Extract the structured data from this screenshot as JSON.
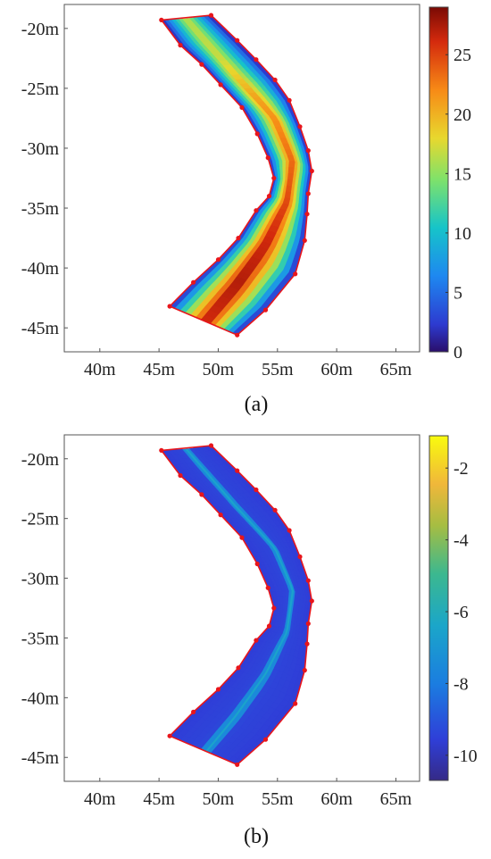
{
  "chart_data": [
    {
      "type": "heatmap",
      "caption": "(a)",
      "x_ticks": [
        "40m",
        "45m",
        "50m",
        "55m",
        "60m",
        "65m"
      ],
      "x_tick_values": [
        40,
        45,
        50,
        55,
        60,
        65
      ],
      "y_ticks": [
        "-20m",
        "-25m",
        "-30m",
        "-35m",
        "-40m",
        "-45m"
      ],
      "y_tick_values": [
        -20,
        -25,
        -30,
        -35,
        -40,
        -45
      ],
      "xlim": [
        37,
        67
      ],
      "ylim": [
        -47,
        -18
      ],
      "colormap": "jet",
      "colorbar_ticks": [
        "0",
        "5",
        "10",
        "15",
        "20",
        "25"
      ],
      "colorbar_tick_values": [
        0,
        5,
        10,
        15,
        20,
        25
      ],
      "colorbar_range": [
        0,
        29
      ],
      "centerline": [
        [
          47.3,
          -19.2
        ],
        [
          51.5,
          -24.0
        ],
        [
          54.8,
          -27.5
        ],
        [
          56.3,
          -31.0
        ],
        [
          55.8,
          -34.5
        ],
        [
          54.0,
          -38.0
        ],
        [
          51.5,
          -41.5
        ],
        [
          49.0,
          -44.5
        ]
      ],
      "field_profile": {
        "centerline_value": [
          17,
          18,
          22,
          24,
          26,
          28,
          29,
          28
        ],
        "edge_value": [
          0.5,
          0.5,
          0.5,
          0.5,
          0.5,
          0.5,
          0.5,
          0.5
        ]
      },
      "boundary_left": [
        [
          45.2,
          -19.3
        ],
        [
          46.8,
          -21.4
        ],
        [
          48.6,
          -23.0
        ],
        [
          50.2,
          -24.7
        ],
        [
          52.0,
          -26.6
        ],
        [
          53.3,
          -28.8
        ],
        [
          54.2,
          -30.8
        ],
        [
          54.7,
          -32.5
        ],
        [
          54.3,
          -34.0
        ],
        [
          53.2,
          -35.2
        ],
        [
          51.7,
          -37.5
        ],
        [
          50.0,
          -39.3
        ],
        [
          47.9,
          -41.2
        ],
        [
          45.9,
          -43.2
        ]
      ],
      "boundary_right": [
        [
          49.4,
          -18.9
        ],
        [
          51.6,
          -21.0
        ],
        [
          53.2,
          -22.6
        ],
        [
          54.8,
          -24.3
        ],
        [
          56.0,
          -26.0
        ],
        [
          56.9,
          -28.2
        ],
        [
          57.6,
          -30.2
        ],
        [
          57.9,
          -31.9
        ],
        [
          57.6,
          -33.8
        ],
        [
          57.5,
          -35.5
        ],
        [
          57.3,
          -37.7
        ],
        [
          56.5,
          -40.5
        ],
        [
          54.0,
          -43.5
        ],
        [
          51.6,
          -45.6
        ]
      ]
    },
    {
      "type": "heatmap",
      "caption": "(b)",
      "x_ticks": [
        "40m",
        "45m",
        "50m",
        "55m",
        "60m",
        "65m"
      ],
      "x_tick_values": [
        40,
        45,
        50,
        55,
        60,
        65
      ],
      "y_ticks": [
        "-20m",
        "-25m",
        "-30m",
        "-35m",
        "-40m",
        "-45m"
      ],
      "y_tick_values": [
        -20,
        -25,
        -30,
        -35,
        -40,
        -45
      ],
      "xlim": [
        37,
        67
      ],
      "ylim": [
        -47,
        -18
      ],
      "colormap": "parula",
      "colorbar_ticks": [
        "-2",
        "-4",
        "-6",
        "-8",
        "-10"
      ],
      "colorbar_tick_values": [
        -2,
        -4,
        -6,
        -8,
        -10
      ],
      "colorbar_range": [
        -10.7,
        -1.1
      ],
      "background_value": -9.6,
      "centerline_value": -6.5,
      "centerline": [
        [
          47.3,
          -19.2
        ],
        [
          51.5,
          -24.0
        ],
        [
          54.8,
          -27.5
        ],
        [
          56.3,
          -31.0
        ],
        [
          55.8,
          -34.5
        ],
        [
          54.0,
          -38.0
        ],
        [
          51.5,
          -41.5
        ],
        [
          49.0,
          -44.5
        ]
      ],
      "boundary_left": [
        [
          45.2,
          -19.3
        ],
        [
          46.8,
          -21.4
        ],
        [
          48.6,
          -23.0
        ],
        [
          50.2,
          -24.7
        ],
        [
          52.0,
          -26.6
        ],
        [
          53.3,
          -28.8
        ],
        [
          54.2,
          -30.8
        ],
        [
          54.7,
          -32.5
        ],
        [
          54.3,
          -34.0
        ],
        [
          53.2,
          -35.2
        ],
        [
          51.7,
          -37.5
        ],
        [
          50.0,
          -39.3
        ],
        [
          47.9,
          -41.2
        ],
        [
          45.9,
          -43.2
        ]
      ],
      "boundary_right": [
        [
          49.4,
          -18.9
        ],
        [
          51.6,
          -21.0
        ],
        [
          53.2,
          -22.6
        ],
        [
          54.8,
          -24.3
        ],
        [
          56.0,
          -26.0
        ],
        [
          56.9,
          -28.2
        ],
        [
          57.6,
          -30.2
        ],
        [
          57.9,
          -31.9
        ],
        [
          57.6,
          -33.8
        ],
        [
          57.5,
          -35.5
        ],
        [
          57.3,
          -37.7
        ],
        [
          56.5,
          -40.5
        ],
        [
          54.0,
          -43.5
        ],
        [
          51.6,
          -45.6
        ]
      ]
    }
  ],
  "colors": {
    "boundary": "#e8151b",
    "axis": "#555555"
  }
}
